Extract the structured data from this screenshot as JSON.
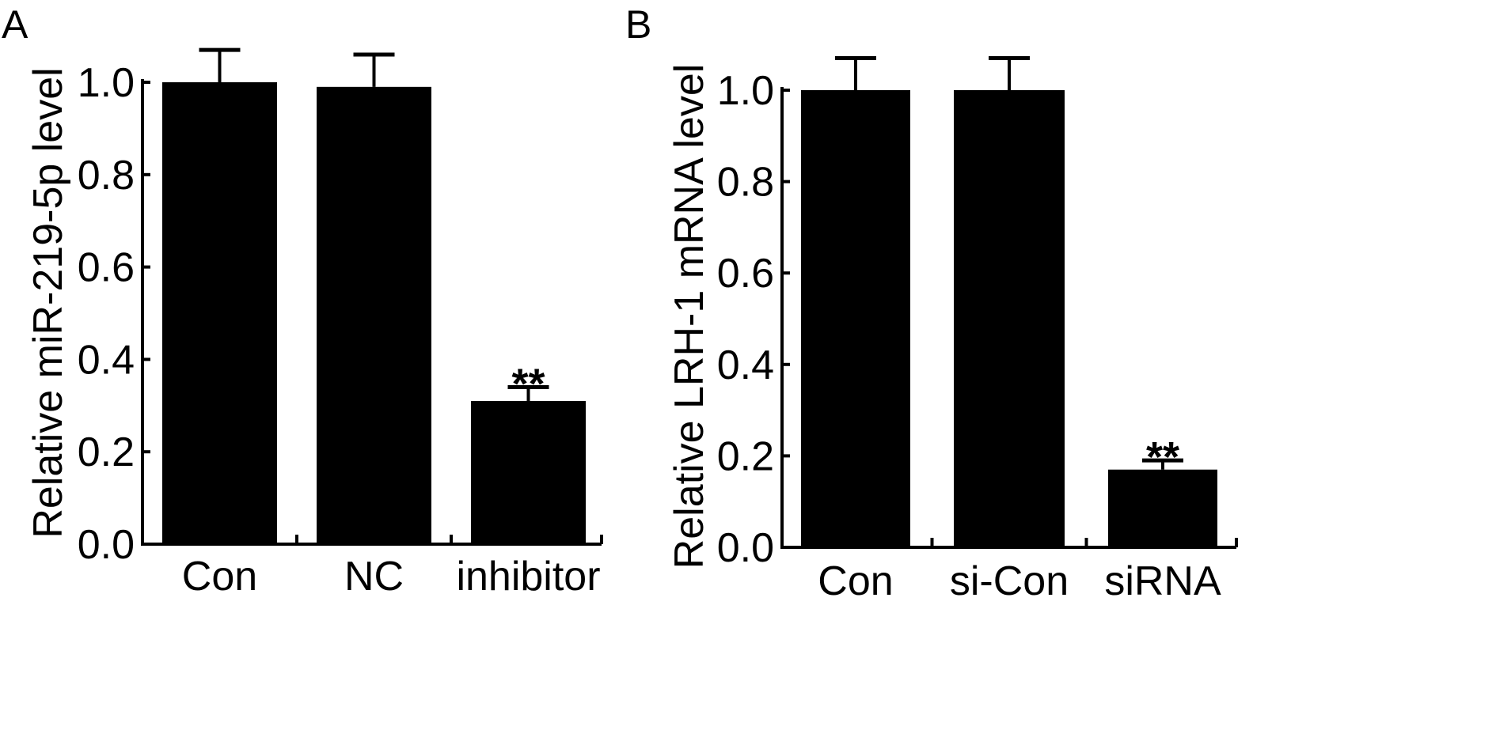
{
  "chart_data": [
    {
      "panel_label": "A",
      "type": "bar",
      "categories": [
        "Con",
        "NC",
        "inhibitor"
      ],
      "values": [
        1.0,
        0.99,
        0.31
      ],
      "errors": [
        0.07,
        0.07,
        0.03
      ],
      "annotations": [
        "",
        "",
        "**"
      ],
      "ylabel": "Relative miR-219-5p level",
      "xlabel": "",
      "ylim": [
        0,
        1.0
      ],
      "yticks": [
        "0.0",
        "0.2",
        "0.4",
        "0.6",
        "0.8",
        "1.0"
      ],
      "bar_color": "#000000",
      "grid": false
    },
    {
      "panel_label": "B",
      "type": "bar",
      "categories": [
        "Con",
        "si-Con",
        "siRNA"
      ],
      "values": [
        1.0,
        1.0,
        0.17
      ],
      "errors": [
        0.07,
        0.07,
        0.02
      ],
      "annotations": [
        "",
        "",
        "**"
      ],
      "ylabel": "Relative LRH-1 mRNA level",
      "xlabel": "",
      "ylim": [
        0,
        1.0
      ],
      "yticks": [
        "0.0",
        "0.2",
        "0.4",
        "0.6",
        "0.8",
        "1.0"
      ],
      "bar_color": "#000000",
      "grid": false
    }
  ]
}
